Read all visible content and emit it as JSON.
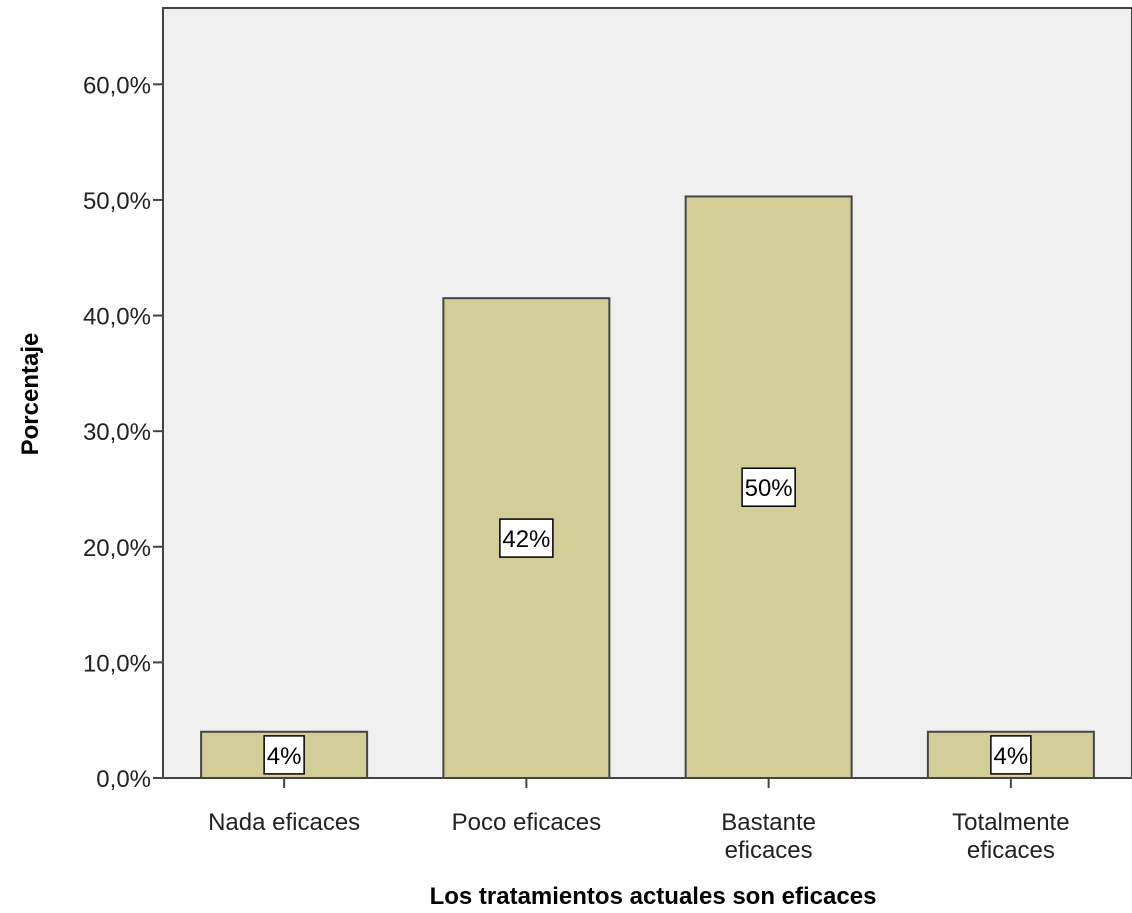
{
  "chart_data": {
    "type": "bar",
    "categories": [
      "Nada eficaces",
      "Poco eficaces",
      "Bastante eficaces",
      "Totalmente eficaces"
    ],
    "category_lines": [
      [
        "Nada eficaces"
      ],
      [
        "Poco eficaces"
      ],
      [
        "Bastante",
        "eficaces"
      ],
      [
        "Totalmente",
        "eficaces"
      ]
    ],
    "values": [
      4.0,
      41.5,
      50.3,
      4.0
    ],
    "data_labels": [
      "4%",
      "42%",
      "50%",
      "4%"
    ],
    "yticks": [
      "0,0%",
      "10,0%",
      "20,0%",
      "30,0%",
      "40,0%",
      "50,0%",
      "60,0%"
    ],
    "ylim": [
      0,
      66.6
    ],
    "xlabel": "Los tratamientos actuales son eficaces",
    "ylabel": "Porcentaje",
    "grid": false,
    "colors": {
      "plot_background": "#f0f0f0",
      "bar_fill": "#d3ce98",
      "bar_stroke": "#444444",
      "axis": "#444444",
      "label_box": "#ffffff"
    }
  }
}
